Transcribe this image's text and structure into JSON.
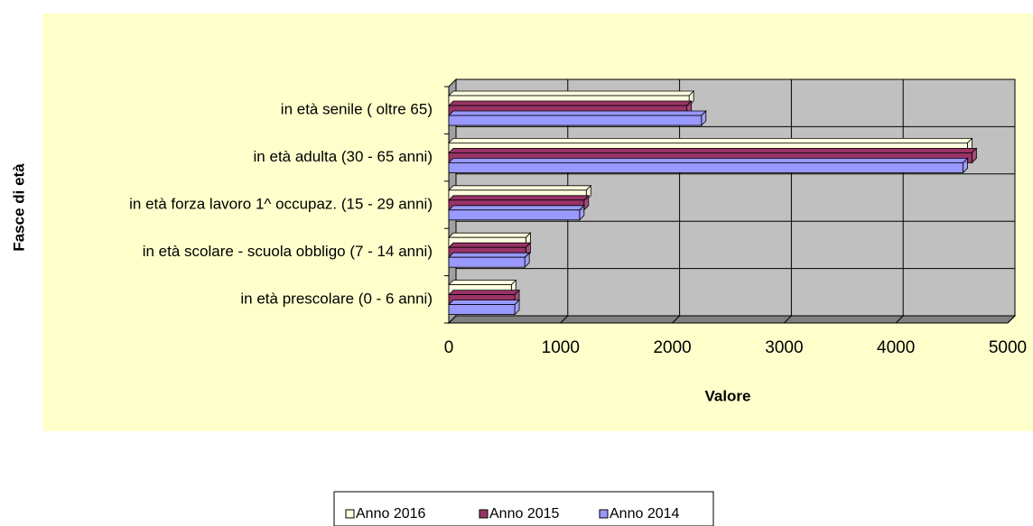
{
  "chart_data": {
    "type": "bar",
    "orientation": "horizontal",
    "categories": [
      "in età senile ( oltre 65)",
      "in età adulta (30 - 65 anni)",
      "in età forza lavoro 1^ occupaz. (15 - 29 anni)",
      "in età scolare - scuola obbligo (7 - 14 anni)",
      "in età prescolare (0 - 6 anni)"
    ],
    "series": [
      {
        "name": "Anno 2016",
        "color": "#ffffe0",
        "values": [
          2150,
          4640,
          1230,
          690,
          560
        ]
      },
      {
        "name": "Anno 2015",
        "color": "#993366",
        "values": [
          2130,
          4680,
          1210,
          690,
          590
        ]
      },
      {
        "name": "Anno 2014",
        "color": "#9999ff",
        "values": [
          2260,
          4600,
          1170,
          680,
          590
        ]
      }
    ],
    "xlabel": "Valore",
    "ylabel": "Fasce di età",
    "xlim": [
      0,
      5000
    ],
    "xticks": [
      0,
      1000,
      2000,
      3000,
      4000,
      5000
    ],
    "grid": true,
    "legend": "bottom"
  }
}
